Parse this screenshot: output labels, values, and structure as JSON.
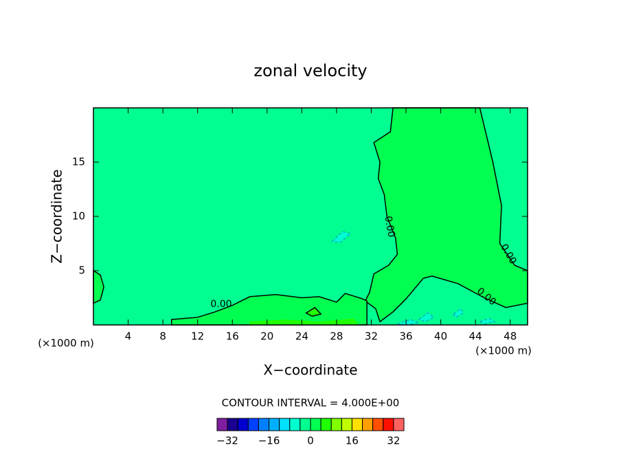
{
  "chart_data": {
    "type": "contour",
    "title": "zonal velocity",
    "xlabel": "X−coordinate",
    "ylabel": "Z−coordinate",
    "x_unit": "(×1000 m)",
    "note": "CONTOUR INTERVAL = 4.000E+00",
    "contour_label": "0.00",
    "xlim": [
      0,
      50
    ],
    "ylim": [
      0,
      20
    ],
    "xticks": [
      4,
      8,
      12,
      16,
      20,
      24,
      28,
      32,
      36,
      40,
      44,
      48
    ],
    "yticks": [
      5,
      10,
      15
    ],
    "colorbar": {
      "clim": [
        -36,
        36
      ],
      "colors": [
        "#7f1fa0",
        "#1a0090",
        "#0000d0",
        "#0040ff",
        "#0080ff",
        "#00b0ff",
        "#00e0ff",
        "#00ffd0",
        "#00ff90",
        "#00ff50",
        "#20ff00",
        "#80ff00",
        "#c0ff00",
        "#ffe000",
        "#ffa000",
        "#ff5000",
        "#ff1000",
        "#ff6060"
      ],
      "ticks": [
        {
          "value": -32,
          "label": "−32"
        },
        {
          "value": -16,
          "label": "−16"
        },
        0,
        16,
        32
      ]
    },
    "regions": [
      {
        "level": -4,
        "outline": false,
        "x": [
          0,
          50,
          50,
          0
        ],
        "y": [
          0,
          0,
          20,
          20
        ]
      },
      {
        "level": 0,
        "outline": true,
        "x": [
          34.5,
          34.2,
          32.3,
          33,
          32.8,
          33.5,
          33.8,
          34.8,
          35,
          34,
          32.3,
          31.8,
          31.3,
          32.5,
          33,
          34.5,
          36,
          38,
          39,
          42,
          45,
          47.5,
          50,
          50,
          48.5,
          46.8,
          47,
          46,
          44.5
        ],
        "y": [
          20,
          17.8,
          16.8,
          15,
          13.5,
          12,
          10,
          8,
          6.5,
          5.5,
          4.7,
          3,
          2.2,
          1.5,
          0.3,
          1.2,
          2.4,
          4.3,
          4.5,
          3.8,
          2.5,
          1.6,
          2,
          5,
          5.5,
          7.5,
          11,
          15,
          20
        ]
      },
      {
        "level": 0,
        "outline": true,
        "x": [
          9,
          9,
          12,
          14,
          16,
          18,
          21,
          24,
          26,
          28,
          29,
          31,
          31.5,
          31.5
        ],
        "y": [
          0,
          0.5,
          0.7,
          1.2,
          1.8,
          2.6,
          2.8,
          2.5,
          2.6,
          2.1,
          2.9,
          2.4,
          2.2,
          0
        ]
      },
      {
        "level": 0,
        "outline": true,
        "x": [
          0,
          0.8,
          1.2,
          0.8,
          0
        ],
        "y": [
          5,
          4.6,
          3.5,
          2.3,
          2
        ]
      },
      {
        "level": 4,
        "outline": false,
        "x": [
          18,
          18,
          22,
          26,
          30,
          30.5
        ],
        "y": [
          0,
          0.3,
          0.5,
          0.3,
          0.6,
          0
        ]
      },
      {
        "level": 4,
        "outline": true,
        "x": [
          24.5,
          25.5,
          26.2,
          25.2
        ],
        "y": [
          1.1,
          1.6,
          1.0,
          0.8
        ]
      },
      {
        "level": -8,
        "outline": true,
        "x": [
          27.5,
          28.7,
          29.6,
          28.4
        ],
        "y": [
          7.7,
          8.6,
          8.4,
          7.6
        ]
      },
      {
        "level": -8,
        "outline": true,
        "x": [
          35,
          36.5,
          37.5,
          36
        ],
        "y": [
          0.1,
          0.5,
          0.2,
          0
        ]
      },
      {
        "level": -8,
        "outline": true,
        "x": [
          37.5,
          38.5,
          39.2,
          38.2
        ],
        "y": [
          0.5,
          1.1,
          0.7,
          0.3
        ]
      },
      {
        "level": -8,
        "outline": true,
        "x": [
          41.5,
          42.3,
          42.6,
          41.7
        ],
        "y": [
          1.0,
          1.5,
          1.1,
          0.7
        ]
      },
      {
        "level": -8,
        "outline": true,
        "x": [
          44.5,
          45.6,
          46.2,
          45
        ],
        "y": [
          0.3,
          0.6,
          0.3,
          0.1
        ]
      }
    ]
  }
}
